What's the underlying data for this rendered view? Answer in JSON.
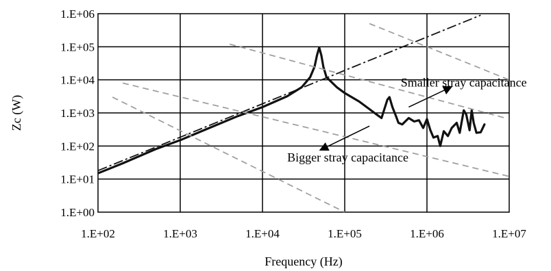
{
  "chart_data": {
    "type": "line",
    "title": "",
    "xlabel": "Frequency (Hz)",
    "ylabel": "Zc (W)",
    "xscale": "log",
    "yscale": "log",
    "xlim": [
      100,
      10000000
    ],
    "ylim": [
      1,
      1000000
    ],
    "grid": true,
    "x_ticks": [
      {
        "value": 100,
        "label": "1.E+02"
      },
      {
        "value": 1000,
        "label": "1.E+03"
      },
      {
        "value": 10000,
        "label": "1.E+04"
      },
      {
        "value": 100000,
        "label": "1.E+05"
      },
      {
        "value": 1000000,
        "label": "1.E+06"
      },
      {
        "value": 10000000,
        "label": "1.E+07"
      }
    ],
    "y_ticks": [
      {
        "value": 1,
        "label": "1.E+00"
      },
      {
        "value": 10,
        "label": "1.E+01"
      },
      {
        "value": 100,
        "label": "1.E+02"
      },
      {
        "value": 1000,
        "label": "1.E+03"
      },
      {
        "value": 10000,
        "label": "1.E+04"
      },
      {
        "value": 100000,
        "label": "1.E+05"
      },
      {
        "value": 1000000,
        "label": "1.E+06"
      }
    ],
    "series": [
      {
        "style": "solid-thick",
        "color": "#111111",
        "points": [
          [
            100,
            15
          ],
          [
            200,
            30
          ],
          [
            500,
            80
          ],
          [
            1000,
            150
          ],
          [
            2000,
            310
          ],
          [
            5000,
            800
          ],
          [
            10000,
            1500
          ],
          [
            20000,
            3200
          ],
          [
            30000,
            6000
          ],
          [
            38000,
            12000
          ],
          [
            43000,
            25000
          ],
          [
            46000,
            55000
          ],
          [
            49000,
            95000
          ],
          [
            52000,
            55000
          ],
          [
            55000,
            25000
          ],
          [
            60000,
            12000
          ],
          [
            80000,
            6000
          ],
          [
            100000,
            4000
          ],
          [
            150000,
            2200
          ],
          [
            200000,
            1300
          ],
          [
            230000,
            1000
          ],
          [
            260000,
            800
          ],
          [
            280000,
            700
          ],
          [
            300000,
            1200
          ],
          [
            330000,
            2500
          ],
          [
            350000,
            3000
          ],
          [
            380000,
            1500
          ],
          [
            420000,
            800
          ],
          [
            450000,
            500
          ],
          [
            500000,
            450
          ],
          [
            600000,
            700
          ],
          [
            700000,
            550
          ],
          [
            800000,
            600
          ],
          [
            900000,
            350
          ],
          [
            1000000,
            650
          ],
          [
            1100000,
            300
          ],
          [
            1200000,
            180
          ],
          [
            1350000,
            200
          ],
          [
            1450000,
            100
          ],
          [
            1600000,
            280
          ],
          [
            1800000,
            200
          ],
          [
            2000000,
            350
          ],
          [
            2300000,
            500
          ],
          [
            2500000,
            250
          ],
          [
            2800000,
            1200
          ],
          [
            3000000,
            900
          ],
          [
            3300000,
            300
          ],
          [
            3500000,
            1200
          ],
          [
            3700000,
            500
          ],
          [
            4000000,
            250
          ],
          [
            4500000,
            260
          ],
          [
            5000000,
            450
          ]
        ]
      },
      {
        "style": "dash-dot",
        "color": "#111111",
        "points": [
          [
            100,
            18
          ],
          [
            4500000,
            900000
          ]
        ]
      },
      {
        "style": "dashed-gray",
        "color": "#a0a0a0",
        "points": [
          [
            4000,
            120000
          ],
          [
            9000000,
            700
          ]
        ]
      },
      {
        "style": "dashed-gray",
        "color": "#a0a0a0",
        "points": [
          [
            200,
            8000
          ],
          [
            10000000,
            12
          ]
        ]
      },
      {
        "style": "dashed-gray",
        "color": "#a0a0a0",
        "points": [
          [
            200000,
            500000
          ],
          [
            10000000,
            10000
          ]
        ]
      },
      {
        "style": "dashed-gray",
        "color": "#a0a0a0",
        "points": [
          [
            150,
            3000
          ],
          [
            100000,
            1
          ]
        ]
      }
    ],
    "annotations": [
      {
        "text": "Smaller stray capacitance",
        "anchor": [
          480000,
          6300
        ],
        "arrow_from": [
          600000,
          1500
        ],
        "arrow_to": [
          2000000,
          6200
        ]
      },
      {
        "text": "Bigger stray capacitance",
        "anchor": [
          20000,
          34
        ],
        "arrow_from": [
          200000,
          400
        ],
        "arrow_to": [
          50000,
          75
        ]
      }
    ]
  }
}
